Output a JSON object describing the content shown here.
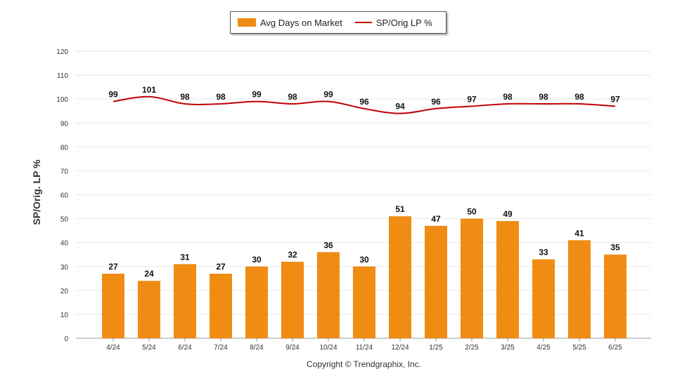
{
  "colors": {
    "bar": "#f08c14",
    "line": "#c00000",
    "grid": "#e6e6e6",
    "axis": "#999999",
    "text": "#333333"
  },
  "legend": {
    "bar_label": "Avg Days on Market",
    "line_label": "SP/Orig LP %"
  },
  "footer": {
    "copyright": "Copyright © Trendgraphix, Inc."
  },
  "chart_data": {
    "type": "bar",
    "categories": [
      "4/24",
      "5/24",
      "6/24",
      "7/24",
      "8/24",
      "9/24",
      "10/24",
      "11/24",
      "12/24",
      "1/25",
      "2/25",
      "3/25",
      "4/25",
      "5/25",
      "6/25"
    ],
    "series": [
      {
        "name": "Avg Days on Market",
        "type": "bar",
        "values": [
          27,
          24,
          31,
          27,
          30,
          32,
          36,
          30,
          51,
          47,
          50,
          49,
          33,
          41,
          35
        ]
      },
      {
        "name": "SP/Orig LP %",
        "type": "line",
        "values": [
          99,
          101,
          98,
          98,
          99,
          98,
          99,
          96,
          94,
          96,
          97,
          98,
          98,
          98,
          97
        ]
      }
    ],
    "ylabel": "SP/Orig. LP %",
    "ylim": [
      0,
      120
    ],
    "yticks": [
      0,
      10,
      20,
      30,
      40,
      50,
      60,
      70,
      80,
      90,
      100,
      110,
      120
    ],
    "grid": true,
    "legend_position": "top-center"
  }
}
